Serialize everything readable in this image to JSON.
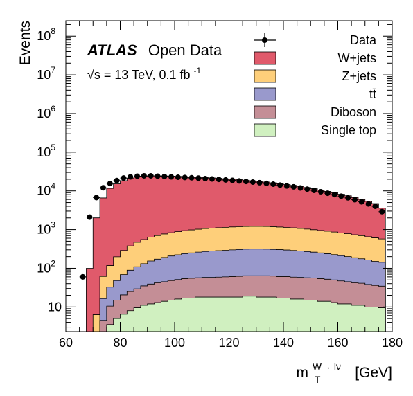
{
  "chart_data": {
    "type": "area",
    "experiment": "ATLAS",
    "label_suffix": "Open Data",
    "energy_label": "√s = 13 TeV, 0.1 fb",
    "energy_sup": "-1",
    "xlabel_main": "m",
    "xlabel_sub": "T",
    "xlabel_sup": "W→ lν",
    "xlabel_unit": "[GeV]",
    "ylabel": "Events",
    "xlim": [
      60,
      180
    ],
    "ylim": [
      2.3,
      250000000
    ],
    "log_y": true,
    "bin_width": 2.5,
    "bin_start": 62.5,
    "x_ticks": [
      60,
      80,
      100,
      120,
      140,
      160,
      180
    ],
    "x_tick_labels": [
      "60",
      "80",
      "100",
      "120",
      "140",
      "160",
      "180"
    ],
    "y_ticks": [
      10,
      100,
      1000,
      10000,
      100000,
      1000000,
      10000000,
      100000000
    ],
    "y_tick_labels": [
      {
        "base": "10",
        "exp": ""
      },
      {
        "base": "10",
        "exp": "2"
      },
      {
        "base": "10",
        "exp": "3"
      },
      {
        "base": "10",
        "exp": "4"
      },
      {
        "base": "10",
        "exp": "5"
      },
      {
        "base": "10",
        "exp": "6"
      },
      {
        "base": "10",
        "exp": "7"
      },
      {
        "base": "10",
        "exp": "8"
      }
    ],
    "legend_position": "top-right",
    "series": [
      {
        "name": "Single top",
        "color": "#d0f0c0",
        "values": [
          0,
          0,
          0,
          0,
          0,
          3.5,
          5,
          6.5,
          8,
          9.5,
          11,
          12,
          13,
          14,
          15,
          16,
          17,
          17,
          18,
          18,
          18,
          18,
          18,
          18,
          18,
          19,
          19,
          18,
          18,
          18,
          17,
          17,
          16,
          16,
          15,
          15,
          14,
          14,
          13,
          12,
          12,
          11,
          11,
          10,
          10,
          9.5
        ]
      },
      {
        "name": "Diboson",
        "color": "#c48e96",
        "values": [
          0,
          0,
          0,
          0,
          4.5,
          7,
          10,
          14,
          17,
          20,
          24,
          27,
          29,
          31,
          33,
          35,
          37,
          38,
          39,
          40,
          40,
          41,
          42,
          43,
          44,
          45,
          45,
          46,
          46,
          45,
          44,
          44,
          43,
          42,
          42,
          41,
          40,
          38,
          37,
          35,
          33,
          31,
          30,
          28,
          26,
          25
        ]
      },
      {
        "name": "tt̄",
        "color": "#9999cc",
        "values": [
          0,
          0,
          0,
          2.3,
          12,
          22,
          33,
          48,
          64,
          80,
          96,
          115,
          130,
          145,
          160,
          172,
          185,
          195,
          205,
          213,
          220,
          226,
          232,
          238,
          243,
          248,
          250,
          250,
          248,
          245,
          242,
          236,
          230,
          222,
          213,
          205,
          195,
          186,
          175,
          165,
          155,
          145,
          135,
          125,
          115,
          108
        ]
      },
      {
        "name": "Z+jets",
        "color": "#fecf7a",
        "values": [
          0,
          0,
          0,
          4,
          45,
          85,
          150,
          220,
          290,
          360,
          420,
          480,
          530,
          580,
          620,
          660,
          700,
          730,
          760,
          790,
          810,
          830,
          850,
          870,
          880,
          890,
          895,
          895,
          890,
          880,
          860,
          840,
          820,
          790,
          760,
          730,
          700,
          670,
          640,
          610,
          580,
          550,
          520,
          490,
          460,
          430
        ]
      },
      {
        "name": "W+jets",
        "color": "#e05a6b",
        "values": [
          0,
          0,
          100,
          2000,
          6500,
          11500,
          15000,
          18000,
          21000,
          22500,
          23500,
          24000,
          23800,
          23500,
          23200,
          22800,
          22400,
          22000,
          21500,
          21000,
          20500,
          20000,
          19400,
          18900,
          18300,
          17700,
          17000,
          16400,
          15700,
          15000,
          14200,
          13500,
          12800,
          12000,
          11200,
          10400,
          9600,
          8800,
          8100,
          7400,
          6700,
          6000,
          5300,
          4700,
          4100,
          3000
        ]
      }
    ],
    "data_series": {
      "name": "Data",
      "values": [
        0,
        60,
        2100,
        6700,
        12000,
        15500,
        18500,
        21500,
        23000,
        24000,
        24500,
        24500,
        24000,
        23500,
        23000,
        22500,
        22200,
        21800,
        21400,
        20800,
        20300,
        19800,
        19200,
        18700,
        18100,
        17500,
        16900,
        16300,
        15600,
        14900,
        14100,
        13400,
        12700,
        11900,
        11100,
        10300,
        9500,
        8700,
        8000,
        7300,
        6600,
        5900,
        5200,
        4600,
        4000,
        2900
      ]
    },
    "legend": [
      {
        "label": "Data",
        "kind": "marker"
      },
      {
        "label": "W+jets",
        "color": "#e05a6b"
      },
      {
        "label": "Z+jets",
        "color": "#fecf7a"
      },
      {
        "label": "tt̄",
        "color": "#9999cc"
      },
      {
        "label": "Diboson",
        "color": "#c48e96"
      },
      {
        "label": "Single top",
        "color": "#d0f0c0"
      }
    ]
  }
}
